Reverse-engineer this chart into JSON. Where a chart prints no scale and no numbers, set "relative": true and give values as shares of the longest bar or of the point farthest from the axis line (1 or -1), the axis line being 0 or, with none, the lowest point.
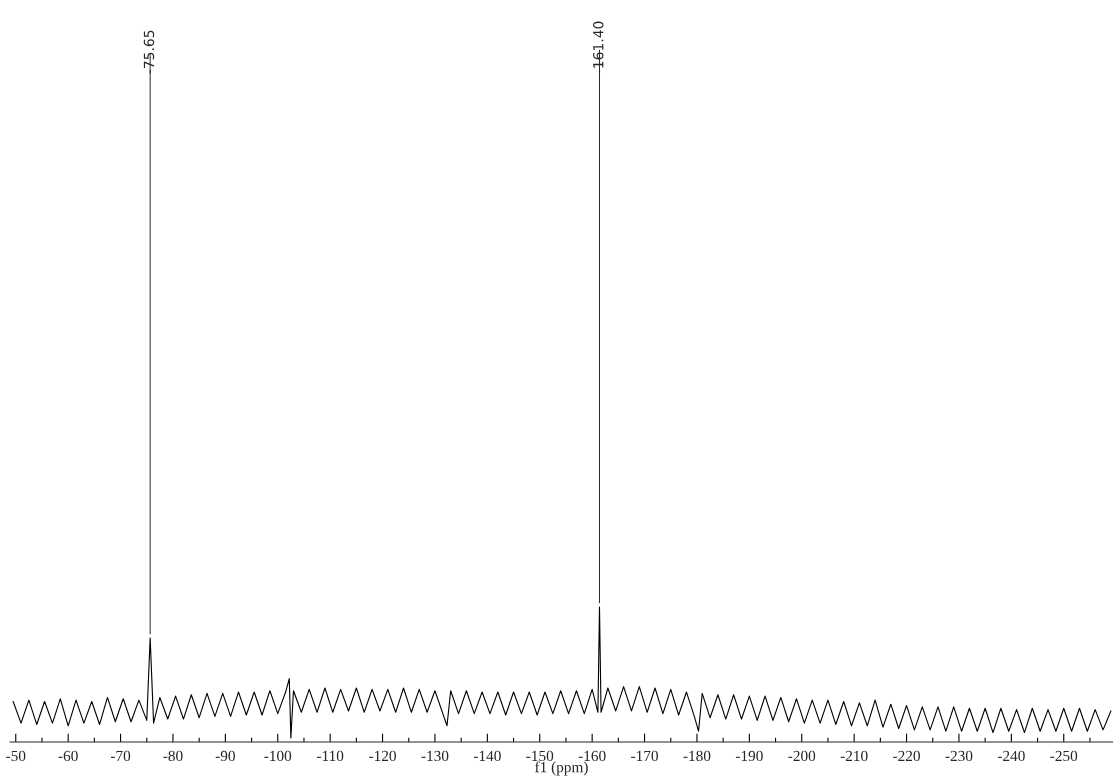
{
  "chart_data": {
    "type": "line",
    "relative": true,
    "xlabel": "f1 (ppm)",
    "xlim": [
      -48.9,
      -259.4
    ],
    "xticks": [
      -50,
      {
        "value": -55,
        "label": null
      },
      -60,
      {
        "value": -65,
        "label": null
      },
      -70,
      {
        "value": -75,
        "label": null
      },
      -80,
      {
        "value": -85,
        "label": null
      },
      -90,
      {
        "value": -95,
        "label": null
      },
      -100,
      {
        "value": -105,
        "label": null
      },
      -110,
      {
        "value": -115,
        "label": null
      },
      -120,
      {
        "value": -125,
        "label": null
      },
      -130,
      {
        "value": -135,
        "label": null
      },
      -140,
      {
        "value": -145,
        "label": null
      },
      -150,
      {
        "value": -155,
        "label": null
      },
      -160,
      {
        "value": -165,
        "label": null
      },
      -170,
      {
        "value": -175,
        "label": null
      },
      -180,
      {
        "value": -185,
        "label": null
      },
      -190,
      {
        "value": -195,
        "label": null
      },
      -200,
      {
        "value": -205,
        "label": null
      },
      -210,
      {
        "value": -215,
        "label": null
      },
      -220,
      {
        "value": -225,
        "label": null
      },
      -230,
      {
        "value": -235,
        "label": null
      },
      -240,
      {
        "value": -245,
        "label": null
      },
      -250,
      {
        "value": -255,
        "label": null
      }
    ],
    "grid": false,
    "line_style": "solid",
    "marker": "none",
    "annotations": [
      {
        "text": "-75.65",
        "x": -75.65,
        "y": 0.77
      },
      {
        "text": "-161.40",
        "x": -161.4,
        "y": 1.0
      }
    ],
    "series": [
      {
        "color": "#000000",
        "x": [
          -49.5,
          -51,
          -52.5,
          -54,
          -55.5,
          -57,
          -58.5,
          -60,
          -61.5,
          -63,
          -64.5,
          -66,
          -67.5,
          -69,
          -70.5,
          -72,
          -73.5,
          -75,
          -75.65,
          -76.3,
          -77.5,
          -79,
          -80.5,
          -82,
          -83.5,
          -85,
          -86.5,
          -88,
          -89.5,
          -91,
          -92.5,
          -94,
          -95.5,
          -97,
          -98.5,
          -100,
          -101.5,
          -102.2,
          -102.5,
          -103,
          -104.5,
          -106,
          -107.5,
          -109,
          -110.5,
          -112,
          -113.5,
          -115,
          -116.5,
          -118,
          -119.5,
          -121,
          -122.5,
          -124,
          -125.5,
          -127,
          -128.5,
          -130,
          -131.5,
          -132.3,
          -133,
          -134.5,
          -136,
          -137.5,
          -139,
          -140.5,
          -142,
          -143.5,
          -145,
          -146.5,
          -148,
          -149.5,
          -151,
          -152.5,
          -154,
          -155.5,
          -157,
          -158.5,
          -160,
          -161.1,
          -161.4,
          -161.7,
          -163,
          -164.5,
          -166,
          -167.5,
          -169,
          -170.5,
          -172,
          -173.5,
          -175,
          -176.5,
          -178,
          -179.5,
          -180.3,
          -181,
          -182.5,
          -184,
          -185.5,
          -187,
          -188.5,
          -190,
          -191.5,
          -193,
          -194.5,
          -196,
          -197.5,
          -199,
          -200.5,
          -202,
          -203.5,
          -205,
          -206.5,
          -208,
          -209.5,
          -211,
          -212.5,
          -214,
          -215.5,
          -217,
          -218.5,
          -220,
          -221.5,
          -223,
          -224.5,
          -226,
          -227.5,
          -229,
          -230.5,
          -232,
          -233.5,
          -235,
          -236.5,
          -238,
          -239.5,
          -241,
          -242.5,
          -244,
          -245.5,
          -247,
          -248.5,
          -250,
          -251.5,
          -253,
          -254.5,
          -256,
          -257.5,
          -259
        ],
        "values": [
          0.3,
          0.14,
          0.31,
          0.13,
          0.3,
          0.14,
          0.32,
          0.12,
          0.31,
          0.14,
          0.3,
          0.13,
          0.33,
          0.15,
          0.32,
          0.15,
          0.31,
          0.16,
          0.77,
          0.14,
          0.33,
          0.17,
          0.34,
          0.17,
          0.35,
          0.18,
          0.36,
          0.19,
          0.36,
          0.19,
          0.37,
          0.2,
          0.37,
          0.2,
          0.38,
          0.21,
          0.37,
          0.47,
          0.03,
          0.38,
          0.22,
          0.39,
          0.22,
          0.4,
          0.22,
          0.39,
          0.23,
          0.4,
          0.22,
          0.39,
          0.23,
          0.39,
          0.22,
          0.4,
          0.22,
          0.39,
          0.22,
          0.38,
          0.21,
          0.12,
          0.38,
          0.21,
          0.38,
          0.21,
          0.37,
          0.21,
          0.37,
          0.2,
          0.37,
          0.21,
          0.37,
          0.2,
          0.37,
          0.21,
          0.38,
          0.21,
          0.38,
          0.21,
          0.39,
          0.22,
          1.0,
          0.22,
          0.4,
          0.23,
          0.41,
          0.23,
          0.41,
          0.22,
          0.4,
          0.21,
          0.39,
          0.2,
          0.37,
          0.19,
          0.08,
          0.36,
          0.18,
          0.35,
          0.17,
          0.35,
          0.17,
          0.34,
          0.16,
          0.34,
          0.16,
          0.33,
          0.15,
          0.32,
          0.14,
          0.31,
          0.14,
          0.31,
          0.13,
          0.3,
          0.12,
          0.29,
          0.12,
          0.31,
          0.11,
          0.28,
          0.1,
          0.27,
          0.09,
          0.26,
          0.09,
          0.26,
          0.08,
          0.26,
          0.08,
          0.25,
          0.08,
          0.25,
          0.07,
          0.25,
          0.08,
          0.24,
          0.07,
          0.25,
          0.08,
          0.24,
          0.08,
          0.25,
          0.08,
          0.25,
          0.08,
          0.24,
          0.09,
          0.23
        ]
      }
    ]
  }
}
